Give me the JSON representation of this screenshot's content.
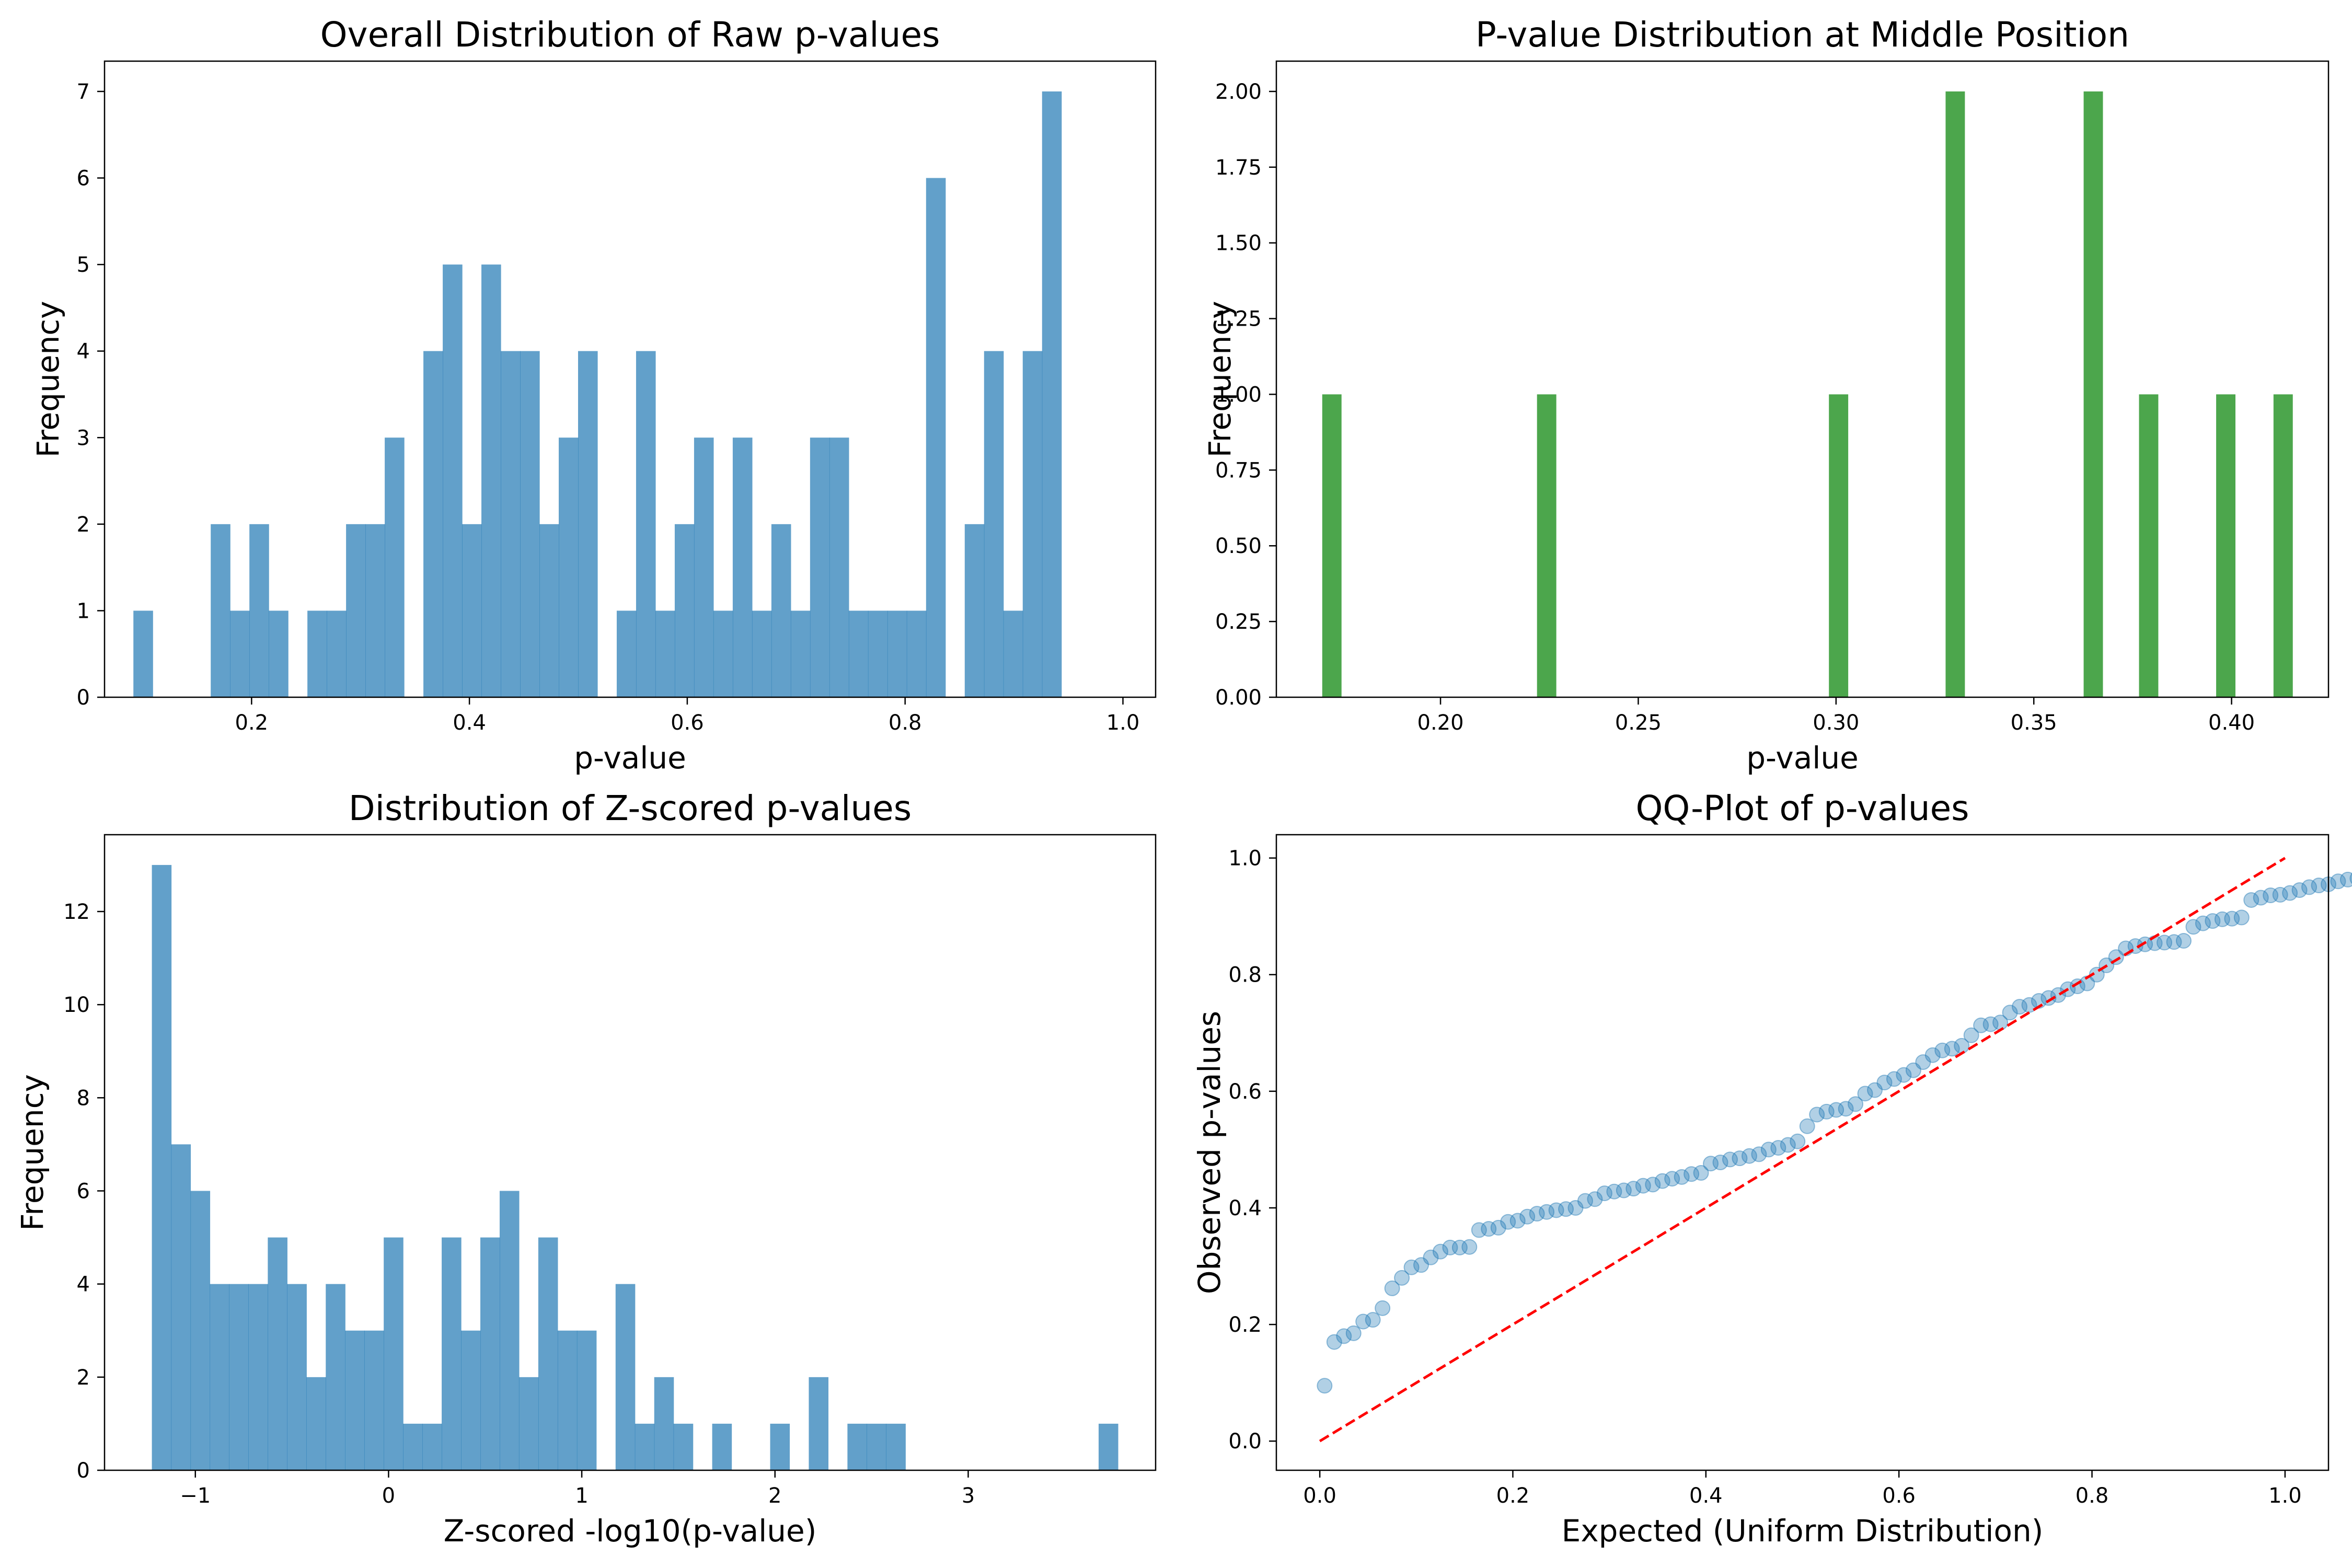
{
  "colors": {
    "hist": "#1f77b4",
    "middle": "#008000",
    "scatter": "#1f77b4",
    "diagonal": "#ff0000"
  },
  "chart_data": [
    {
      "type": "bar",
      "title": "Overall Distribution of Raw p-values",
      "xlabel": "p-value",
      "ylabel": "Frequency",
      "xlim": [
        0.065,
        1.03
      ],
      "ylim": [
        0,
        7.35
      ],
      "xticks": [
        0.2,
        0.4,
        0.6,
        0.8,
        1.0
      ],
      "xtick_labels": [
        "0.2",
        "0.4",
        "0.6",
        "0.8",
        "1.0"
      ],
      "yticks": [
        0,
        1,
        2,
        3,
        4,
        5,
        6,
        7
      ],
      "ytick_labels": [
        "0",
        "1",
        "2",
        "3",
        "4",
        "5",
        "6",
        "7"
      ],
      "bin_start": 0.0915,
      "bin_width": 0.01775,
      "values": [
        1,
        0,
        0,
        0,
        2,
        1,
        2,
        1,
        0,
        1,
        1,
        2,
        2,
        3,
        0,
        4,
        5,
        2,
        5,
        4,
        4,
        2,
        3,
        4,
        0,
        1,
        4,
        1,
        2,
        3,
        1,
        3,
        1,
        2,
        1,
        3,
        3,
        1,
        1,
        1,
        1,
        6,
        0,
        2,
        4,
        1,
        4,
        7
      ],
      "color": "#1f77b4",
      "opacity": 0.7
    },
    {
      "type": "bar",
      "title": "P-value Distribution at Middle Position",
      "xlabel": "p-value",
      "ylabel": "Frequency",
      "xlim": [
        0.1585,
        0.4245
      ],
      "ylim": [
        0,
        2.1
      ],
      "xticks": [
        0.2,
        0.25,
        0.3,
        0.35,
        0.4
      ],
      "xtick_labels": [
        "0.20",
        "0.25",
        "0.30",
        "0.35",
        "0.40"
      ],
      "yticks": [
        0,
        0.25,
        0.5,
        0.75,
        1.0,
        1.25,
        1.5,
        1.75,
        2.0
      ],
      "ytick_labels": [
        "0.00",
        "0.25",
        "0.50",
        "0.75",
        "1.00",
        "1.25",
        "1.50",
        "1.75",
        "2.00"
      ],
      "bar_width": 0.0048,
      "x": [
        0.1725,
        0.2268,
        0.3006,
        0.3301,
        0.365,
        0.379,
        0.3985,
        0.413
      ],
      "values": [
        1,
        1,
        1,
        2,
        2,
        1,
        1,
        1
      ],
      "color": "#008000",
      "opacity": 0.7
    },
    {
      "type": "bar",
      "title": "Distribution of Z-scored p-values",
      "xlabel": "Z-scored -log10(p-value)",
      "ylabel": "Frequency",
      "xlim": [
        -1.47,
        3.97
      ],
      "ylim": [
        0,
        13.65
      ],
      "xticks": [
        -1,
        0,
        1,
        2,
        3
      ],
      "xtick_labels": [
        "−1",
        "0",
        "1",
        "2",
        "3"
      ],
      "yticks": [
        0,
        2,
        4,
        6,
        8,
        10,
        12
      ],
      "ytick_labels": [
        "0",
        "2",
        "4",
        "6",
        "8",
        "10",
        "12"
      ],
      "bin_start": -1.225,
      "bin_width": 0.1,
      "values": [
        13,
        7,
        6,
        4,
        4,
        4,
        5,
        4,
        2,
        4,
        3,
        3,
        5,
        1,
        1,
        5,
        3,
        5,
        6,
        2,
        5,
        3,
        3,
        0,
        4,
        1,
        2,
        1,
        0,
        1,
        0,
        0,
        1,
        0,
        2,
        0,
        1,
        1,
        1,
        0,
        0,
        0,
        0,
        0,
        0,
        0,
        0,
        0,
        0,
        1
      ],
      "color": "#1f77b4",
      "opacity": 0.7
    },
    {
      "type": "scatter",
      "title": "QQ-Plot of p-values",
      "xlabel": "Expected (Uniform Distribution)",
      "ylabel": "Observed p-values",
      "xlim": [
        -0.045,
        1.045
      ],
      "ylim": [
        -0.05,
        1.04
      ],
      "xticks": [
        0,
        0.2,
        0.4,
        0.6,
        0.8,
        1.0
      ],
      "xtick_labels": [
        "0.0",
        "0.2",
        "0.4",
        "0.6",
        "0.8",
        "1.0"
      ],
      "yticks": [
        0,
        0.2,
        0.4,
        0.6,
        0.8,
        1.0
      ],
      "ytick_labels": [
        "0.0",
        "0.2",
        "0.4",
        "0.6",
        "0.8",
        "1.0"
      ],
      "x_first": 0.005,
      "x_step": 0.01,
      "y": [
        0.095,
        0.17,
        0.18,
        0.185,
        0.205,
        0.208,
        0.228,
        0.262,
        0.28,
        0.298,
        0.302,
        0.315,
        0.325,
        0.332,
        0.332,
        0.333,
        0.362,
        0.364,
        0.366,
        0.376,
        0.378,
        0.385,
        0.39,
        0.393,
        0.396,
        0.398,
        0.4,
        0.412,
        0.415,
        0.425,
        0.428,
        0.43,
        0.433,
        0.438,
        0.44,
        0.446,
        0.45,
        0.453,
        0.458,
        0.46,
        0.476,
        0.478,
        0.483,
        0.485,
        0.489,
        0.492,
        0.5,
        0.503,
        0.508,
        0.514,
        0.54,
        0.56,
        0.565,
        0.568,
        0.57,
        0.578,
        0.596,
        0.602,
        0.615,
        0.621,
        0.628,
        0.636,
        0.65,
        0.662,
        0.67,
        0.673,
        0.678,
        0.696,
        0.713,
        0.715,
        0.718,
        0.735,
        0.745,
        0.748,
        0.755,
        0.76,
        0.765,
        0.775,
        0.78,
        0.785,
        0.8,
        0.816,
        0.83,
        0.845,
        0.849,
        0.852,
        0.854,
        0.855,
        0.856,
        0.858,
        0.882,
        0.888,
        0.892,
        0.895,
        0.896,
        0.898,
        0.928,
        0.932,
        0.936,
        0.937,
        0.94,
        0.945,
        0.95,
        0.953,
        0.955,
        0.96,
        0.963,
        0.965,
        0.968,
        0.972,
        0.976,
        0.978,
        0.98,
        0.982
      ],
      "reference_line": [
        [
          0,
          0
        ],
        [
          1,
          1
        ]
      ],
      "point_color": "#1f77b4",
      "point_opacity": 0.35,
      "line_color": "#ff0000"
    }
  ]
}
